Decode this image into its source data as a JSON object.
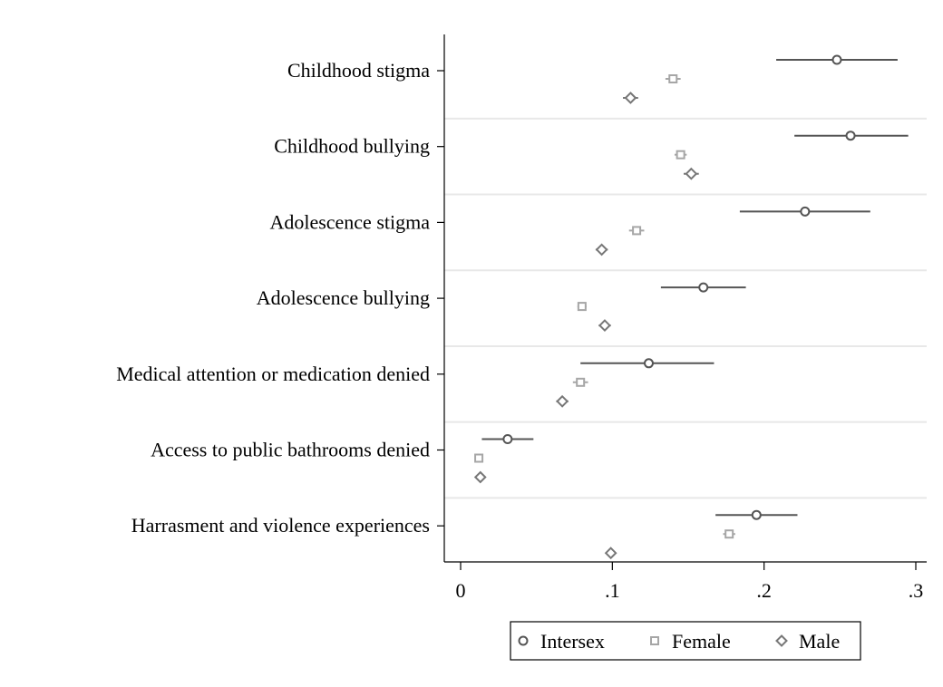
{
  "chart_data": {
    "type": "scatter",
    "subtype": "dot-whisker",
    "categories": [
      "Childhood stigma",
      "Childhood bullying",
      "Adolescence stigma",
      "Adolescence bullying",
      "Medical attention or medication denied",
      "Access to public bathrooms denied",
      "Harrasment and violence experiences"
    ],
    "series": [
      {
        "name": "Intersex",
        "marker": "circle",
        "color": "#555555",
        "estimates": [
          0.248,
          0.257,
          0.227,
          0.16,
          0.124,
          0.031,
          0.195
        ],
        "ci_low": [
          0.208,
          0.22,
          0.184,
          0.132,
          0.079,
          0.014,
          0.168
        ],
        "ci_high": [
          0.288,
          0.295,
          0.27,
          0.188,
          0.167,
          0.048,
          0.222
        ]
      },
      {
        "name": "Female",
        "marker": "square",
        "color": "#a6a6a6",
        "estimates": [
          0.14,
          0.145,
          0.116,
          0.08,
          0.079,
          0.012,
          0.177
        ],
        "ci_low": [
          0.135,
          0.141,
          0.111,
          0.077,
          0.074,
          0.011,
          0.173
        ],
        "ci_high": [
          0.145,
          0.149,
          0.121,
          0.083,
          0.084,
          0.013,
          0.181
        ]
      },
      {
        "name": "Male",
        "marker": "diamond",
        "color": "#777777",
        "estimates": [
          0.112,
          0.152,
          0.093,
          0.095,
          0.067,
          0.013,
          0.099
        ],
        "ci_low": [
          0.107,
          0.147,
          0.089,
          0.091,
          0.063,
          0.012,
          0.097
        ],
        "ci_high": [
          0.117,
          0.157,
          0.097,
          0.099,
          0.071,
          0.014,
          0.101
        ]
      }
    ],
    "xlim": [
      -0.01,
      0.31
    ],
    "xticks": [
      0,
      0.1,
      0.2,
      0.3
    ],
    "xtick_labels": [
      "0",
      ".1",
      ".2",
      ".3"
    ],
    "title": "",
    "xlabel": "",
    "ylabel": "",
    "grid": "horizontal separators between categories",
    "legend": {
      "position": "bottom-center",
      "entries": [
        "Intersex",
        "Female",
        "Male"
      ]
    }
  }
}
